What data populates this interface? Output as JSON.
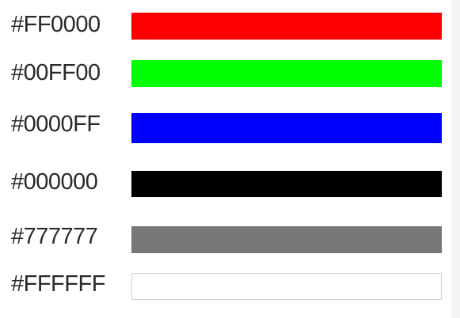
{
  "swatches": [
    {
      "label": "#FF0000",
      "color": "#FF0000"
    },
    {
      "label": "#00FF00",
      "color": "#00FF00"
    },
    {
      "label": "#0000FF",
      "color": "#0000FF"
    },
    {
      "label": "#000000",
      "color": "#000000"
    },
    {
      "label": "#777777",
      "color": "#777777"
    },
    {
      "label": "#FFFFFF",
      "color": "#FFFFFF"
    }
  ]
}
